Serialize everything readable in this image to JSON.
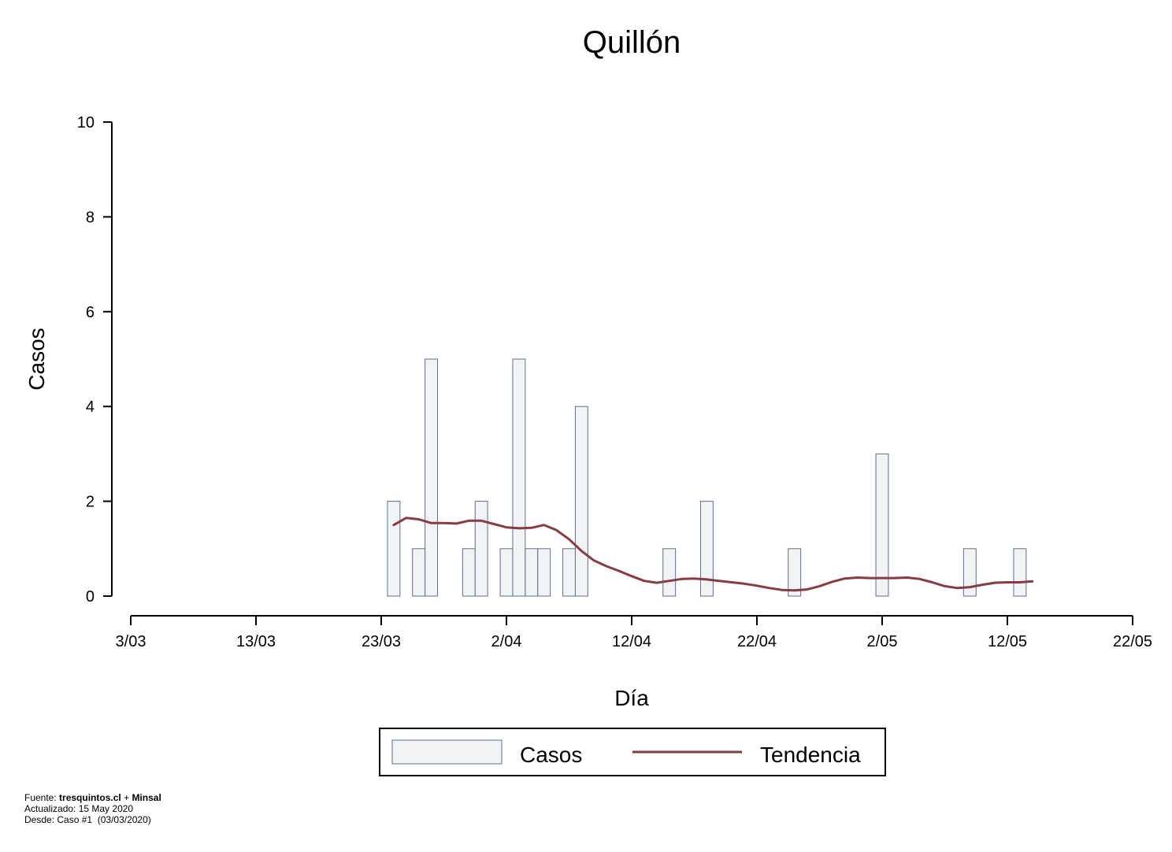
{
  "chart_data": {
    "type": "bar",
    "title": "Quillón",
    "xlabel": "Día",
    "ylabel": "Casos",
    "ylim": [
      0,
      10
    ],
    "yticks": [
      0,
      2,
      4,
      6,
      8,
      10
    ],
    "x_start": "2020-03-03",
    "x_end": "2020-05-22",
    "xticks": [
      "3/03",
      "13/03",
      "23/03",
      "2/04",
      "12/04",
      "22/04",
      "2/05",
      "12/05",
      "22/05"
    ],
    "colors": {
      "bar_fill": "#f2f3f5",
      "bar_stroke": "#5b6f95",
      "trend": "#8b3a3f"
    },
    "series": [
      {
        "name": "Casos",
        "type": "bar",
        "points": [
          [
            "2020-03-24",
            2
          ],
          [
            "2020-03-26",
            1
          ],
          [
            "2020-03-27",
            5
          ],
          [
            "2020-03-30",
            1
          ],
          [
            "2020-03-31",
            2
          ],
          [
            "2020-04-02",
            1
          ],
          [
            "2020-04-03",
            5
          ],
          [
            "2020-04-04",
            1
          ],
          [
            "2020-04-05",
            1
          ],
          [
            "2020-04-07",
            1
          ],
          [
            "2020-04-08",
            4
          ],
          [
            "2020-04-15",
            1
          ],
          [
            "2020-04-18",
            2
          ],
          [
            "2020-04-25",
            1
          ],
          [
            "2020-05-02",
            3
          ],
          [
            "2020-05-09",
            1
          ],
          [
            "2020-05-13",
            1
          ]
        ]
      },
      {
        "name": "Tendencia",
        "type": "line",
        "points": [
          [
            "2020-03-24",
            1.5
          ],
          [
            "2020-03-25",
            1.65
          ],
          [
            "2020-03-26",
            1.62
          ],
          [
            "2020-03-27",
            1.54
          ],
          [
            "2020-03-28",
            1.54
          ],
          [
            "2020-03-29",
            1.53
          ],
          [
            "2020-03-30",
            1.59
          ],
          [
            "2020-03-31",
            1.59
          ],
          [
            "2020-04-01",
            1.52
          ],
          [
            "2020-04-02",
            1.45
          ],
          [
            "2020-04-03",
            1.43
          ],
          [
            "2020-04-04",
            1.44
          ],
          [
            "2020-04-05",
            1.5
          ],
          [
            "2020-04-06",
            1.39
          ],
          [
            "2020-04-07",
            1.2
          ],
          [
            "2020-04-08",
            0.95
          ],
          [
            "2020-04-09",
            0.75
          ],
          [
            "2020-04-10",
            0.63
          ],
          [
            "2020-04-11",
            0.53
          ],
          [
            "2020-04-12",
            0.42
          ],
          [
            "2020-04-13",
            0.32
          ],
          [
            "2020-04-14",
            0.28
          ],
          [
            "2020-04-15",
            0.32
          ],
          [
            "2020-04-16",
            0.36
          ],
          [
            "2020-04-17",
            0.37
          ],
          [
            "2020-04-18",
            0.35
          ],
          [
            "2020-04-19",
            0.32
          ],
          [
            "2020-04-20",
            0.29
          ],
          [
            "2020-04-21",
            0.26
          ],
          [
            "2020-04-22",
            0.22
          ],
          [
            "2020-04-23",
            0.17
          ],
          [
            "2020-04-24",
            0.13
          ],
          [
            "2020-04-25",
            0.12
          ],
          [
            "2020-04-26",
            0.14
          ],
          [
            "2020-04-27",
            0.21
          ],
          [
            "2020-04-28",
            0.3
          ],
          [
            "2020-04-29",
            0.37
          ],
          [
            "2020-04-30",
            0.39
          ],
          [
            "2020-05-01",
            0.38
          ],
          [
            "2020-05-02",
            0.38
          ],
          [
            "2020-05-03",
            0.38
          ],
          [
            "2020-05-04",
            0.39
          ],
          [
            "2020-05-05",
            0.36
          ],
          [
            "2020-05-06",
            0.29
          ],
          [
            "2020-05-07",
            0.21
          ],
          [
            "2020-05-08",
            0.17
          ],
          [
            "2020-05-09",
            0.19
          ],
          [
            "2020-05-10",
            0.24
          ],
          [
            "2020-05-11",
            0.28
          ],
          [
            "2020-05-12",
            0.29
          ],
          [
            "2020-05-13",
            0.29
          ],
          [
            "2020-05-14",
            0.31
          ]
        ]
      }
    ],
    "legend": {
      "placement": "bottom"
    }
  },
  "footer": {
    "source_label": "Fuente:",
    "source_site": "tresquintos.cl",
    "source_plus": "+",
    "source_org": "Minsal",
    "updated": "Actualizado: 15 May 2020",
    "since": "Desde: Caso #1  (03/03/2020)"
  }
}
